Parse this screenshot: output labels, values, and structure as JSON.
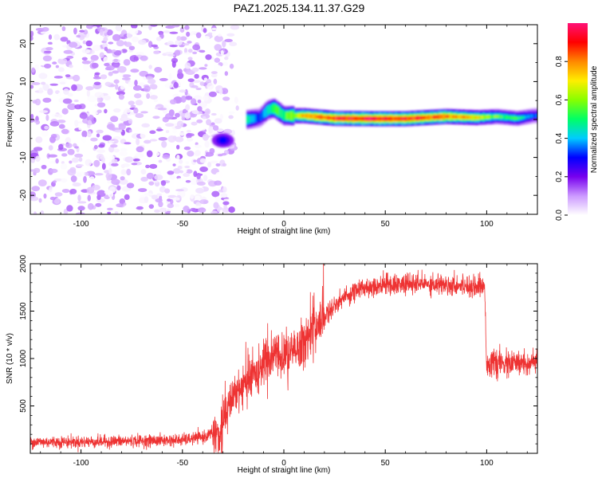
{
  "title": "PAZ1.2025.134.11.37.G29",
  "chart_data": [
    {
      "type": "heatmap",
      "xlabel": "Height of straight line (km)",
      "ylabel": "Frequency (Hz)",
      "xlim": [
        -125,
        125
      ],
      "ylim": [
        -25,
        25
      ],
      "x_ticks": [
        -100,
        -50,
        0,
        50,
        100
      ],
      "x_tick_labels": [
        "-100",
        "-50",
        "0",
        "50",
        "100"
      ],
      "y_ticks": [
        -20,
        -10,
        0,
        10,
        20
      ],
      "y_tick_labels": [
        "-20",
        "-10",
        "0",
        "10",
        "20"
      ],
      "colorbar": {
        "label": "Normalized spectral amplitude",
        "range": [
          0,
          1
        ],
        "ticks": [
          0.0,
          0.2,
          0.4,
          0.6,
          0.8
        ],
        "tick_labels": [
          "0.0",
          "0.2",
          "0.4",
          "0.6",
          "0.8"
        ],
        "colormap": [
          "#ffffff",
          "#cc99ff",
          "#7700ee",
          "#0000ff",
          "#00ccff",
          "#00ff66",
          "#88ff00",
          "#ffee00",
          "#ff8800",
          "#ff0000",
          "#ff1177"
        ]
      },
      "features": [
        {
          "name": "noise speckle",
          "x_range": [
            -125,
            -20
          ],
          "freq_range": [
            -25,
            25
          ],
          "amplitude_range": [
            0.0,
            0.15
          ]
        },
        {
          "name": "strong blob",
          "x": -30,
          "freq": -5.5,
          "amplitude": 0.3
        },
        {
          "name": "signal band",
          "x_range": [
            -20,
            125
          ],
          "freq": 0.3,
          "amplitude_peak": 1.0
        }
      ],
      "signal_band_points": [
        {
          "x": -18,
          "freq": 0.0,
          "amp": 0.45
        },
        {
          "x": -12,
          "freq": 0.5,
          "amp": 0.3
        },
        {
          "x": -8,
          "freq": 2.5,
          "amp": 0.45
        },
        {
          "x": -5,
          "freq": 3.0,
          "amp": 0.55
        },
        {
          "x": 0,
          "freq": 1.0,
          "amp": 0.5
        },
        {
          "x": 10,
          "freq": 1.0,
          "amp": 0.8
        },
        {
          "x": 25,
          "freq": 0.3,
          "amp": 0.9
        },
        {
          "x": 45,
          "freq": 0.2,
          "amp": 0.95
        },
        {
          "x": 60,
          "freq": 0.2,
          "amp": 0.9
        },
        {
          "x": 80,
          "freq": 0.8,
          "amp": 0.85
        },
        {
          "x": 95,
          "freq": 0.5,
          "amp": 0.7
        },
        {
          "x": 105,
          "freq": 0.8,
          "amp": 0.55
        },
        {
          "x": 115,
          "freq": 0.3,
          "amp": 0.5
        },
        {
          "x": 123,
          "freq": 1.0,
          "amp": 0.35
        }
      ]
    },
    {
      "type": "line",
      "xlabel": "Height of straight line (km)",
      "ylabel": "SNR (10 * v/v)",
      "xlim": [
        -125,
        125
      ],
      "ylim": [
        0,
        2000
      ],
      "x_ticks": [
        -100,
        -50,
        0,
        50,
        100
      ],
      "x_tick_labels": [
        "-100",
        "-50",
        "0",
        "50",
        "100"
      ],
      "y_ticks": [
        500,
        1000,
        1500,
        2000
      ],
      "y_tick_labels": [
        "500",
        "1000",
        "1500",
        "2000"
      ],
      "color": "#ee3333",
      "series": [
        {
          "name": "SNR",
          "x": [
            -125,
            -100,
            -75,
            -50,
            -40,
            -32,
            -28,
            -25,
            -20,
            -15,
            -10,
            -5,
            0,
            5,
            10,
            15,
            20,
            25,
            30,
            35,
            40,
            50,
            60,
            70,
            80,
            90,
            99,
            100,
            110,
            125
          ],
          "y": [
            120,
            120,
            130,
            140,
            170,
            240,
            420,
            620,
            720,
            820,
            920,
            1050,
            1000,
            1080,
            1180,
            1330,
            1450,
            1560,
            1650,
            1710,
            1750,
            1780,
            1780,
            1790,
            1780,
            1770,
            1760,
            950,
            940,
            960
          ]
        }
      ]
    }
  ]
}
